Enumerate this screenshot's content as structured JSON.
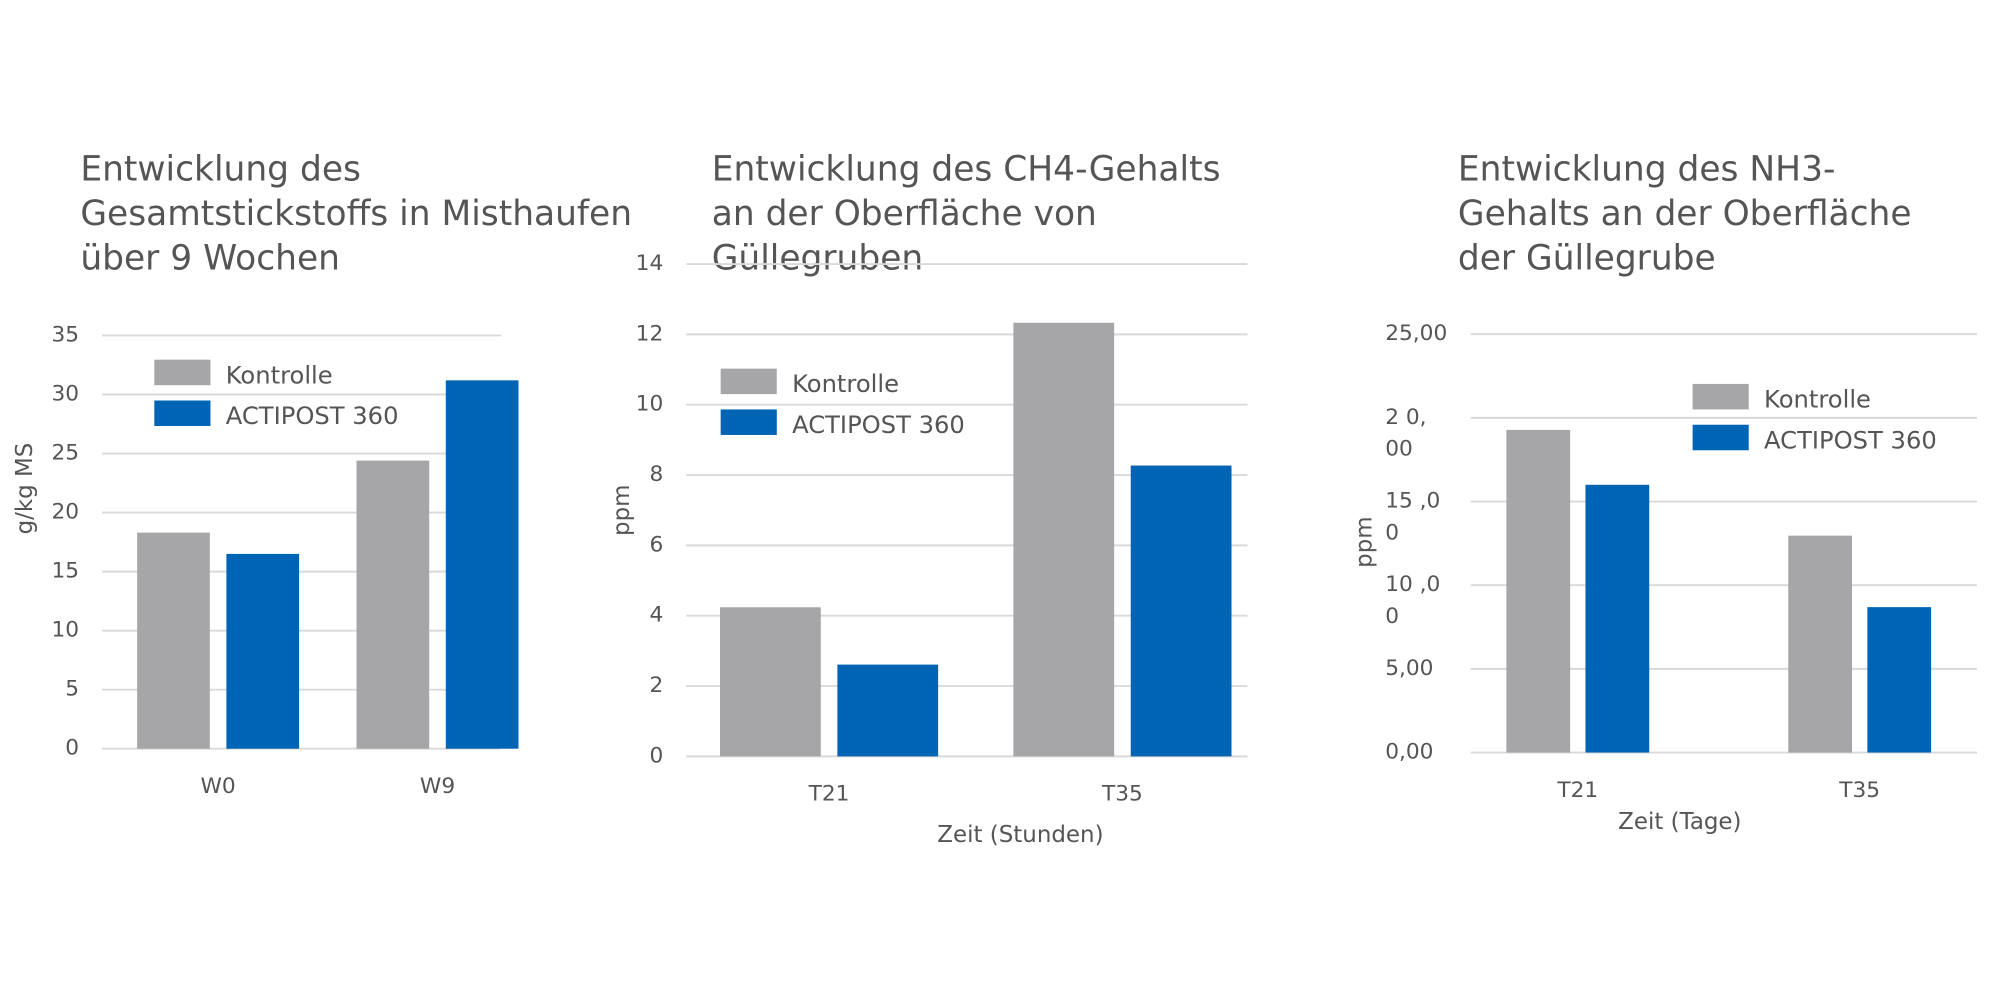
{
  "chart_data": [
    {
      "type": "bar",
      "title": [
        "Entwicklung des",
        "Gesamtstickstoffs in Misthaufen",
        "über 9 Wochen"
      ],
      "y_label": "g/kg MS",
      "categories": [
        "W0",
        "W9"
      ],
      "series": [
        {
          "name": "Kontrolle",
          "color": "#a6a5a7",
          "values": [
            18.3,
            24.4
          ]
        },
        {
          "name": "ACTIPOST 360",
          "color": "#0064b4",
          "values": [
            16.5,
            31.2
          ]
        }
      ],
      "ylim": [
        0,
        35
      ],
      "yticks": [
        0,
        5,
        10,
        15,
        20,
        25,
        30,
        35
      ],
      "grid": true
    },
    {
      "type": "bar",
      "title": [
        "Entwicklung des CH4-Gehalts",
        "an der Oberfläche von",
        "Güllegruben"
      ],
      "y_label": "ppm",
      "x_label": "Zeit (Stunden)",
      "categories": [
        "T21",
        "T35"
      ],
      "series": [
        {
          "name": "Kontrolle",
          "color": "#a6a5a7",
          "values": [
            4.24,
            12.33
          ]
        },
        {
          "name": "ACTIPOST 360",
          "color": "#0064b4",
          "values": [
            2.61,
            8.27
          ]
        }
      ],
      "ylim": [
        0,
        14
      ],
      "yticks": [
        0,
        2,
        4,
        6,
        8,
        10,
        12,
        14
      ],
      "grid": true
    },
    {
      "type": "bar",
      "title": [
        "Entwicklung des NH3-",
        "Gehalts an der Oberfläche",
        "der Güllegrube"
      ],
      "y_label": "ppm",
      "x_label": "Zeit (Tage)",
      "categories": [
        "T21",
        "T35"
      ],
      "series": [
        {
          "name": "Kontrolle",
          "color": "#a6a5a7",
          "values": [
            19.28,
            12.96
          ]
        },
        {
          "name": "ACTIPOST 360",
          "color": "#0064b4",
          "values": [
            16.0,
            8.69
          ]
        }
      ],
      "ylim": [
        0,
        25
      ],
      "yticks": [
        {
          "value": 0,
          "label": "0,00"
        },
        {
          "value": 5,
          "label": "5,00"
        },
        {
          "value": 10,
          "label": "10 ,0\n0"
        },
        {
          "value": 15,
          "label": "15 ,0\n0"
        },
        {
          "value": 20,
          "label": "2 0,\n00"
        },
        {
          "value": 25,
          "label": "25,00"
        }
      ],
      "grid": true
    }
  ]
}
